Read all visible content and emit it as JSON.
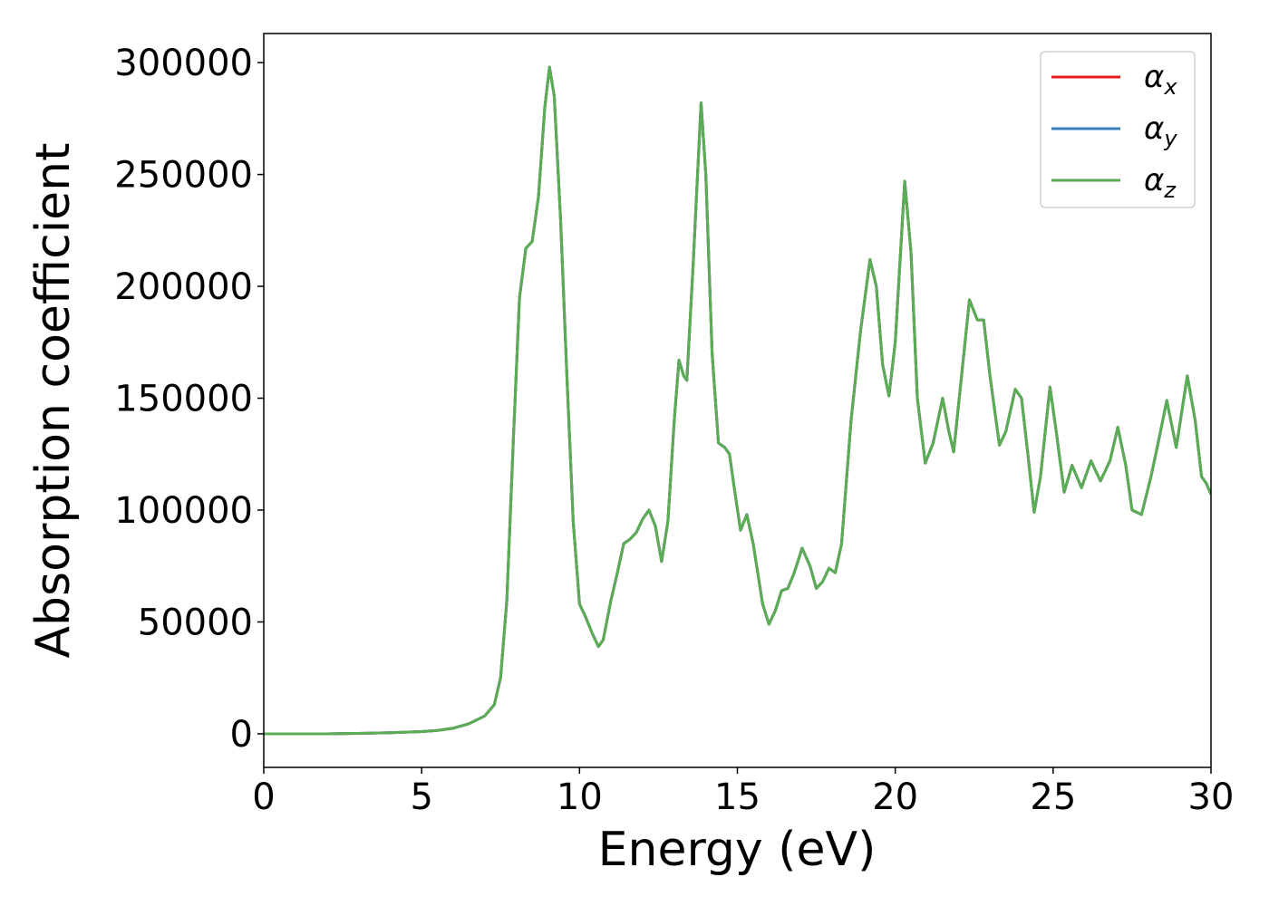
{
  "chart_data": {
    "type": "line",
    "xlabel": "Energy (eV)",
    "ylabel": "Absorption coefficient",
    "xlim": [
      0,
      30
    ],
    "ylim": [
      -15000,
      313000
    ],
    "xticks": [
      0,
      5,
      10,
      15,
      20,
      25,
      30
    ],
    "yticks": [
      0,
      50000,
      100000,
      150000,
      200000,
      250000,
      300000
    ],
    "legend": "upper right",
    "x": [
      0,
      1,
      2,
      3,
      4,
      5,
      5.5,
      6,
      6.5,
      7,
      7.3,
      7.5,
      7.7,
      7.9,
      8.1,
      8.3,
      8.5,
      8.7,
      8.9,
      9.05,
      9.2,
      9.4,
      9.6,
      9.8,
      10.0,
      10.2,
      10.4,
      10.6,
      10.75,
      11.0,
      11.2,
      11.4,
      11.6,
      11.8,
      12.0,
      12.2,
      12.4,
      12.6,
      12.8,
      13.0,
      13.15,
      13.3,
      13.4,
      13.6,
      13.85,
      14.0,
      14.2,
      14.4,
      14.6,
      14.75,
      14.9,
      15.1,
      15.3,
      15.5,
      15.8,
      16.0,
      16.2,
      16.4,
      16.6,
      16.8,
      17.05,
      17.3,
      17.5,
      17.7,
      17.9,
      18.1,
      18.3,
      18.6,
      18.9,
      19.2,
      19.4,
      19.6,
      19.8,
      20.0,
      20.3,
      20.5,
      20.7,
      20.95,
      21.2,
      21.5,
      21.7,
      21.85,
      22.1,
      22.35,
      22.6,
      22.8,
      23.0,
      23.3,
      23.5,
      23.8,
      24.0,
      24.2,
      24.4,
      24.6,
      24.9,
      25.1,
      25.35,
      25.6,
      25.9,
      26.2,
      26.5,
      26.8,
      27.05,
      27.3,
      27.5,
      27.8,
      28.1,
      28.4,
      28.6,
      28.9,
      29.25,
      29.5,
      29.7,
      29.85,
      30
    ],
    "series": [
      {
        "name": "αx",
        "color": "#e41a1c",
        "values": [
          0,
          0,
          0,
          200,
          500,
          1000,
          1500,
          2500,
          4500,
          8000,
          13000,
          25000,
          60000,
          130000,
          195000,
          217000,
          220000,
          240000,
          280000,
          298000,
          285000,
          230000,
          160000,
          95000,
          58000,
          52000,
          45000,
          39000,
          42000,
          60000,
          72000,
          85000,
          87000,
          90000,
          96000,
          100000,
          93000,
          77000,
          95000,
          140000,
          167000,
          160000,
          158000,
          210000,
          282000,
          250000,
          170000,
          130000,
          128000,
          125000,
          110000,
          91000,
          98000,
          85000,
          58000,
          49000,
          55000,
          64000,
          65000,
          72000,
          83000,
          75000,
          65000,
          68000,
          74000,
          72000,
          85000,
          140000,
          180000,
          212000,
          200000,
          165000,
          151000,
          175000,
          247000,
          215000,
          150000,
          121000,
          130000,
          150000,
          135000,
          126000,
          160000,
          194000,
          185000,
          185000,
          160000,
          129000,
          135000,
          154000,
          150000,
          125000,
          99000,
          115000,
          155000,
          135000,
          108000,
          120000,
          110000,
          122000,
          113000,
          122000,
          137000,
          120000,
          100000,
          98000,
          115000,
          135000,
          149000,
          128000,
          160000,
          140000,
          115000,
          112000,
          107000
        ]
      },
      {
        "name": "αy",
        "color": "#377eb8",
        "values": [
          0,
          0,
          0,
          200,
          500,
          1000,
          1500,
          2500,
          4500,
          8000,
          13000,
          25000,
          60000,
          130000,
          195000,
          217000,
          220000,
          240000,
          280000,
          298000,
          285000,
          230000,
          160000,
          95000,
          58000,
          52000,
          45000,
          39000,
          42000,
          60000,
          72000,
          85000,
          87000,
          90000,
          96000,
          100000,
          93000,
          77000,
          95000,
          140000,
          167000,
          160000,
          158000,
          210000,
          282000,
          250000,
          170000,
          130000,
          128000,
          125000,
          110000,
          91000,
          98000,
          85000,
          58000,
          49000,
          55000,
          64000,
          65000,
          72000,
          83000,
          75000,
          65000,
          68000,
          74000,
          72000,
          85000,
          140000,
          180000,
          212000,
          200000,
          165000,
          151000,
          175000,
          247000,
          215000,
          150000,
          121000,
          130000,
          150000,
          135000,
          126000,
          160000,
          194000,
          185000,
          185000,
          160000,
          129000,
          135000,
          154000,
          150000,
          125000,
          99000,
          115000,
          155000,
          135000,
          108000,
          120000,
          110000,
          122000,
          113000,
          122000,
          137000,
          120000,
          100000,
          98000,
          115000,
          135000,
          149000,
          128000,
          160000,
          140000,
          115000,
          112000,
          107000
        ]
      },
      {
        "name": "αz",
        "color": "#5aad55",
        "values": [
          0,
          0,
          0,
          200,
          500,
          1000,
          1500,
          2500,
          4500,
          8000,
          13000,
          25000,
          60000,
          130000,
          195000,
          217000,
          220000,
          240000,
          280000,
          298000,
          285000,
          230000,
          160000,
          95000,
          58000,
          52000,
          45000,
          39000,
          42000,
          60000,
          72000,
          85000,
          87000,
          90000,
          96000,
          100000,
          93000,
          77000,
          95000,
          140000,
          167000,
          160000,
          158000,
          210000,
          282000,
          250000,
          170000,
          130000,
          128000,
          125000,
          110000,
          91000,
          98000,
          85000,
          58000,
          49000,
          55000,
          64000,
          65000,
          72000,
          83000,
          75000,
          65000,
          68000,
          74000,
          72000,
          85000,
          140000,
          180000,
          212000,
          200000,
          165000,
          151000,
          175000,
          247000,
          215000,
          150000,
          121000,
          130000,
          150000,
          135000,
          126000,
          160000,
          194000,
          185000,
          185000,
          160000,
          129000,
          135000,
          154000,
          150000,
          125000,
          99000,
          115000,
          155000,
          135000,
          108000,
          120000,
          110000,
          122000,
          113000,
          122000,
          137000,
          120000,
          100000,
          98000,
          115000,
          135000,
          149000,
          128000,
          160000,
          140000,
          115000,
          112000,
          107000
        ]
      }
    ]
  }
}
